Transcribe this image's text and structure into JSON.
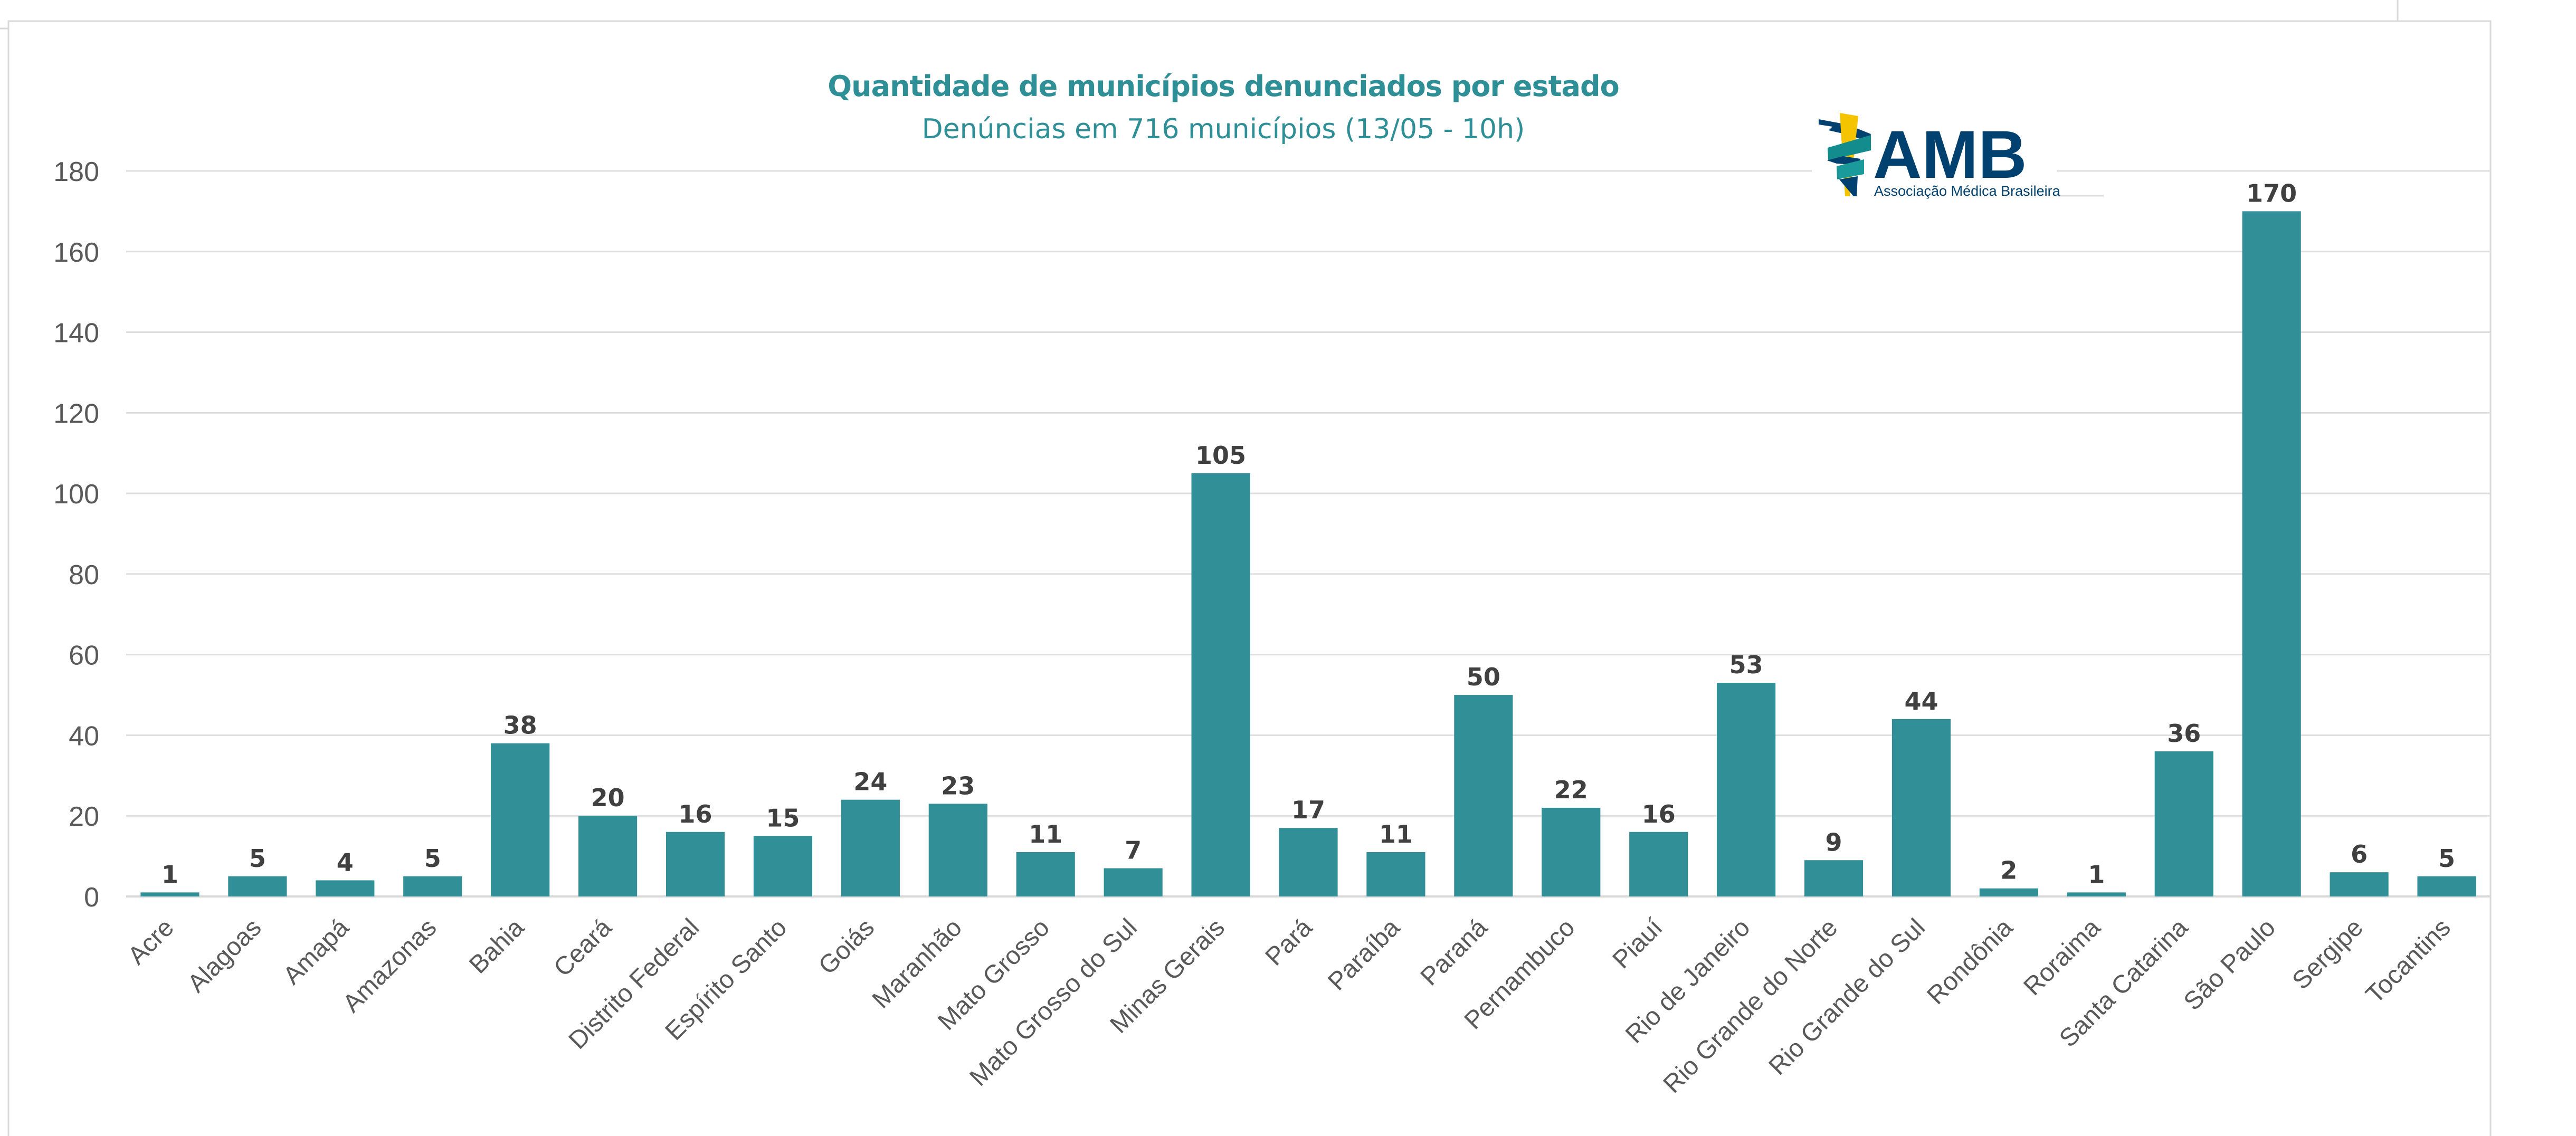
{
  "logo": {
    "acronym": "AMB",
    "name": "Associação Médica Brasileira",
    "colors": {
      "navy": "#00416F",
      "teal": "#138C8E",
      "yellow": "#F5C400"
    }
  },
  "colors": {
    "bar": "#318F97",
    "title": "#2F8F97",
    "label": "#404040",
    "tick": "#595959",
    "grid": "#dedede"
  },
  "chart_data": {
    "type": "bar",
    "title": "Quantidade de municípios denunciados por estado",
    "subtitle": "Denúncias em 716 municípios (13/05 - 10h)",
    "xlabel": "",
    "ylabel": "",
    "ylim": [
      0,
      180
    ],
    "yticks": [
      0,
      20,
      40,
      60,
      80,
      100,
      120,
      140,
      160,
      180
    ],
    "grid": true,
    "legend": "none",
    "data_labels": true,
    "categories": [
      "Acre",
      "Alagoas",
      "Amapá",
      "Amazonas",
      "Bahia",
      "Ceará",
      "Distrito Federal",
      "Espírito Santo",
      "Goiás",
      "Maranhão",
      "Mato Grosso",
      "Mato Grosso do Sul",
      "Minas Gerais",
      "Pará",
      "Paraíba",
      "Paraná",
      "Pernambuco",
      "Piauí",
      "Rio de Janeiro",
      "Rio Grande do Norte",
      "Rio Grande do Sul",
      "Rondônia",
      "Roraima",
      "Santa Catarina",
      "São Paulo",
      "Sergipe",
      "Tocantins"
    ],
    "values": [
      1,
      5,
      4,
      5,
      38,
      20,
      16,
      15,
      24,
      23,
      11,
      7,
      105,
      17,
      11,
      50,
      22,
      16,
      53,
      9,
      44,
      2,
      1,
      36,
      170,
      6,
      5
    ]
  }
}
